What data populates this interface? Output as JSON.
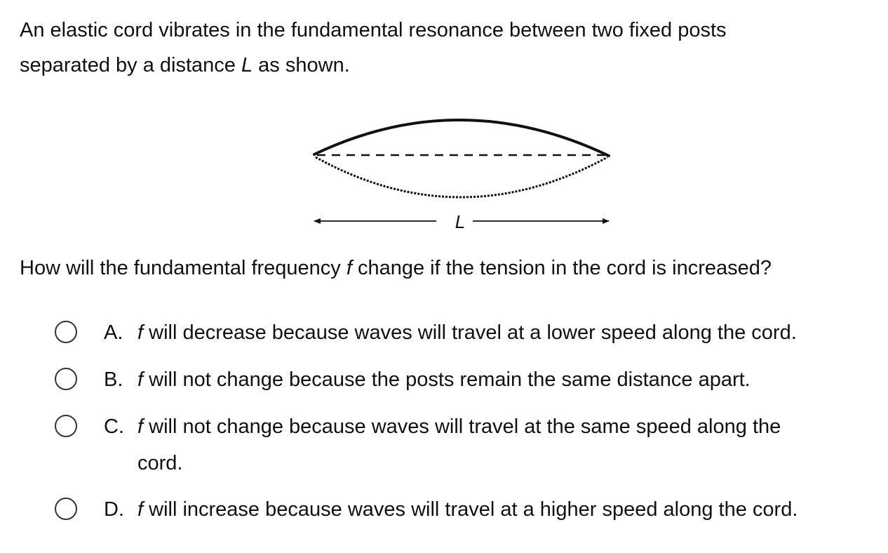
{
  "stem": {
    "line1": "An elastic cord vibrates in the fundamental resonance between two fixed posts",
    "line2_before": "separated by a distance ",
    "line2_var": "L",
    "line2_after": " as shown."
  },
  "figure": {
    "dimension_label": "L"
  },
  "question": {
    "before": "How will the fundamental frequency ",
    "var": "f",
    "after": " change if the tension in the cord is increased?"
  },
  "options": [
    {
      "letter": "A.",
      "var": "f",
      "line1": " will decrease because waves will travel at a lower speed along the cord.",
      "line2": ""
    },
    {
      "letter": "B.",
      "var": "f",
      "line1": " will not change because the posts remain the same distance apart.",
      "line2": ""
    },
    {
      "letter": "C.",
      "var": "f",
      "line1": " will not change because waves will travel at the same speed along the",
      "line2": "cord."
    },
    {
      "letter": "D.",
      "var": "f",
      "line1": " will increase because waves will travel at a higher speed along the cord.",
      "line2": ""
    }
  ]
}
